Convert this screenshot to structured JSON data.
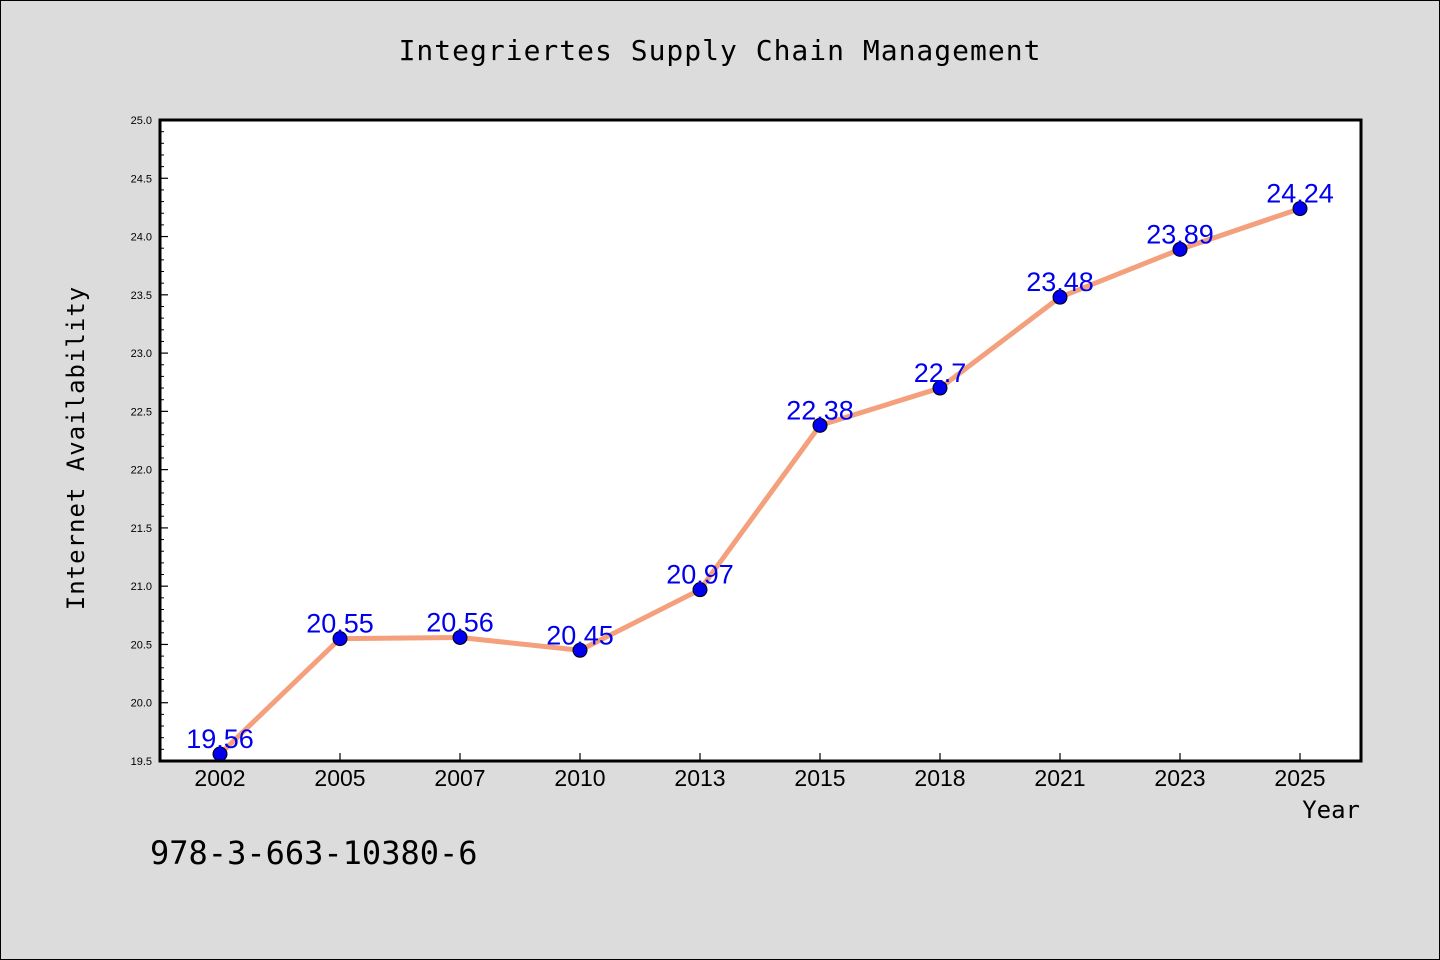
{
  "chart_data": {
    "type": "line",
    "title": "Integriertes Supply Chain Management",
    "xlabel": "Year",
    "ylabel": "Internet Availability",
    "categories": [
      "2002",
      "2005",
      "2007",
      "2010",
      "2013",
      "2015",
      "2018",
      "2021",
      "2023",
      "2025"
    ],
    "series": [
      {
        "values": [
          19.56,
          20.55,
          20.56,
          20.45,
          20.97,
          22.38,
          22.7,
          23.48,
          23.89,
          24.24
        ],
        "line_color": "#f4a07c",
        "marker_color": "#0000ee"
      }
    ],
    "data_labels": [
      "19.56",
      "20.55",
      "20.56",
      "20.45",
      "20.97",
      "22.38",
      "22.7",
      "23.48",
      "23.89",
      "24.24"
    ],
    "ylim": [
      19.5,
      25.0
    ],
    "yticks": [
      "19.5",
      "20.0",
      "20.5",
      "21.0",
      "21.5",
      "22.0",
      "22.5",
      "23.0",
      "23.5",
      "24.0",
      "24.5",
      "25.0"
    ],
    "grid": false,
    "label_color": "#0000ee"
  },
  "footer": {
    "isbn": "978-3-663-10380-6"
  }
}
